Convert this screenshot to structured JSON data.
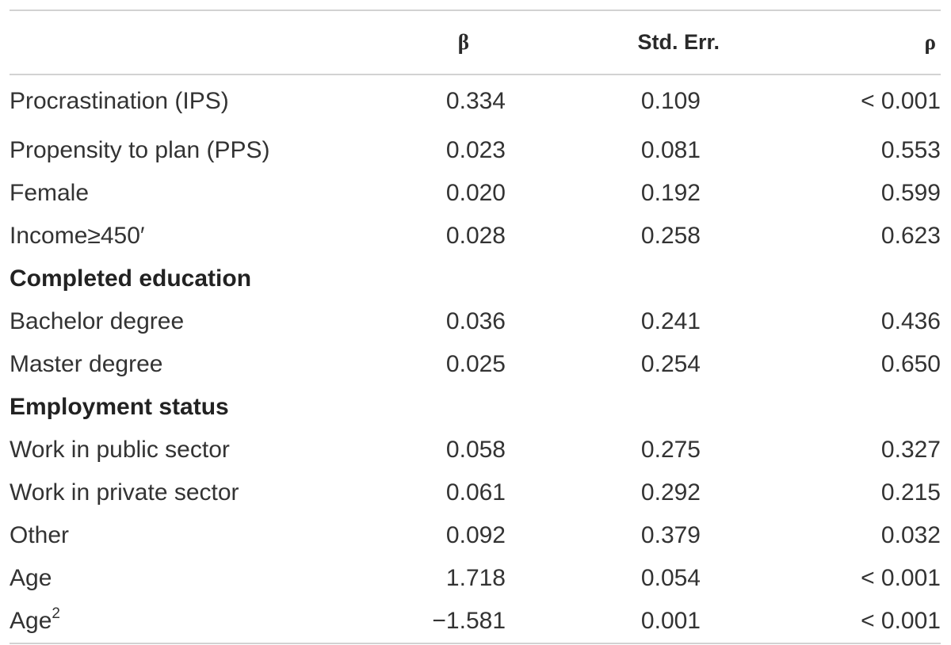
{
  "table": {
    "headers": [
      "",
      "β",
      "Std. Err.",
      "ρ"
    ],
    "rows": [
      {
        "label": "Procrastination (IPS)",
        "beta": "0.334",
        "se": "0.109",
        "p": "< 0.001"
      },
      {
        "label": "Propensity to plan (PPS)",
        "beta": "0.023",
        "se": "0.081",
        "p": "0.553"
      },
      {
        "label": "Female",
        "beta": "0.020",
        "se": "0.192",
        "p": "0.599"
      },
      {
        "label": "Income≥450′",
        "beta": "0.028",
        "se": "0.258",
        "p": "0.623"
      },
      {
        "label": "Completed education",
        "section": true
      },
      {
        "label": "Bachelor degree",
        "beta": "0.036",
        "se": "0.241",
        "p": "0.436"
      },
      {
        "label": "Master degree",
        "beta": "0.025",
        "se": "0.254",
        "p": "0.650"
      },
      {
        "label": "Employment status",
        "section": true
      },
      {
        "label": "Work in public sector",
        "beta": "0.058",
        "se": "0.275",
        "p": "0.327"
      },
      {
        "label": "Work in private sector",
        "beta": "0.061",
        "se": "0.292",
        "p": "0.215"
      },
      {
        "label": "Other",
        "beta": "0.092",
        "se": "0.379",
        "p": "0.032"
      },
      {
        "label": "Age",
        "beta": "1.718",
        "se": "0.054",
        "p": "< 0.001"
      },
      {
        "label": "Age",
        "label_sup": "2",
        "beta": "−1.581",
        "se": "0.001",
        "p": "< 0.001"
      }
    ]
  }
}
